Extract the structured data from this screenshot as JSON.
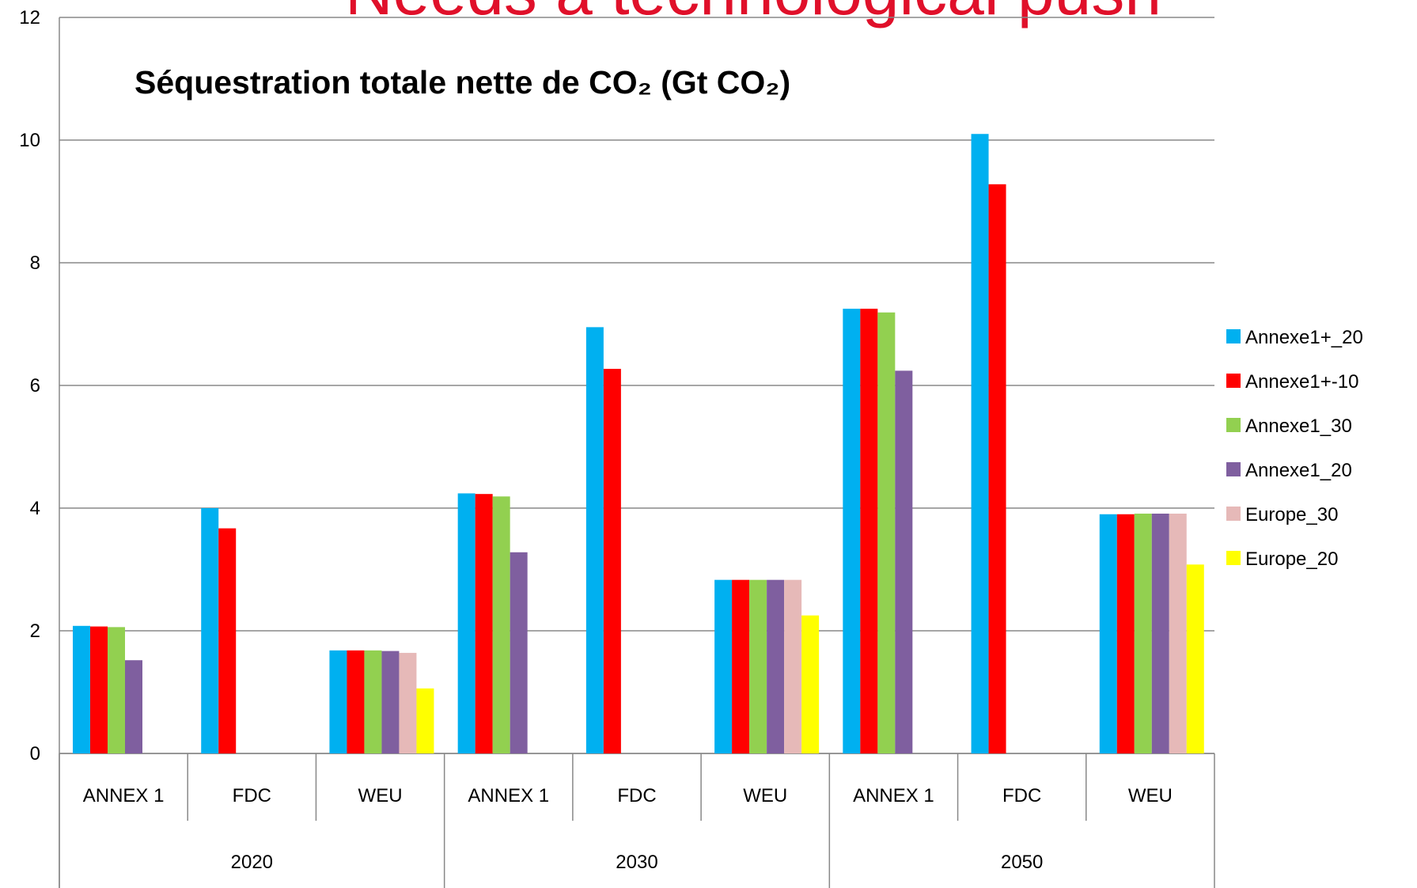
{
  "chart_data": {
    "type": "bar",
    "heading": "Needs a technological push",
    "title": "Séquestration totale nette de CO₂ (Gt CO₂)",
    "categories": [
      "ANNEX 1",
      "FDC",
      "WEU",
      "ANNEX 1",
      "FDC",
      "WEU",
      "ANNEX 1",
      "FDC",
      "WEU"
    ],
    "groups": [
      "2020",
      "2030",
      "2050"
    ],
    "series": [
      {
        "name": "Annexe1+_20",
        "color": "#00b0f0",
        "values": [
          2.08,
          4.0,
          1.68,
          4.24,
          6.95,
          2.83,
          7.25,
          10.1,
          3.9
        ]
      },
      {
        "name": "Annexe1+-10",
        "color": "#ff0000",
        "values": [
          2.07,
          3.67,
          1.68,
          4.23,
          6.27,
          2.83,
          7.25,
          9.28,
          3.9
        ]
      },
      {
        "name": "Annexe1_30",
        "color": "#92d050",
        "values": [
          2.06,
          null,
          1.68,
          4.19,
          null,
          2.83,
          7.19,
          null,
          3.91
        ]
      },
      {
        "name": "Annexe1_20",
        "color": "#7f5f9f",
        "values": [
          1.52,
          null,
          1.67,
          3.28,
          null,
          2.83,
          6.24,
          null,
          3.91
        ]
      },
      {
        "name": "Europe_30",
        "color": "#e6b9b8",
        "values": [
          null,
          null,
          1.64,
          null,
          null,
          2.83,
          null,
          null,
          3.91
        ]
      },
      {
        "name": "Europe_20",
        "color": "#ffff00",
        "values": [
          null,
          null,
          1.06,
          null,
          null,
          2.25,
          null,
          null,
          3.08
        ]
      }
    ],
    "ylim": [
      0,
      12
    ],
    "yticks": [
      0,
      2,
      4,
      6,
      8,
      10,
      12
    ],
    "grid": true,
    "legend": "right"
  }
}
